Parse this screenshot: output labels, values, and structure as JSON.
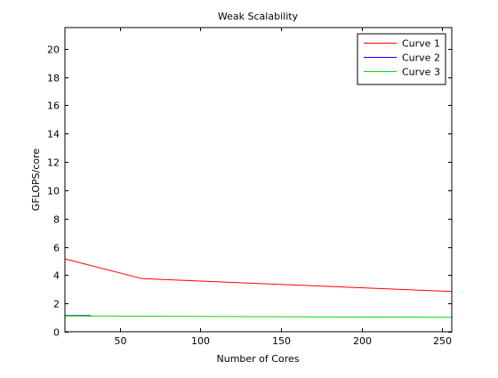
{
  "chart_data": {
    "type": "line",
    "title": "Weak Scalability",
    "xlabel": "Number of Cores",
    "ylabel": "GFLOPS/core",
    "xlim": [
      16,
      256
    ],
    "ylim": [
      0,
      21.5
    ],
    "xticks": [
      50,
      100,
      150,
      200,
      250
    ],
    "yticks": [
      0,
      2,
      4,
      6,
      8,
      10,
      12,
      14,
      16,
      18,
      20
    ],
    "grid": false,
    "legend_position": "top-right",
    "series": [
      {
        "name": "Curve 1",
        "color": "#ff0000",
        "x": [
          16,
          64,
          256
        ],
        "y": [
          5.15,
          3.75,
          2.85
        ]
      },
      {
        "name": "Curve 2",
        "color": "#0000ff",
        "x": [
          16,
          32
        ],
        "y": [
          1.15,
          1.15
        ]
      },
      {
        "name": "Curve 3",
        "color": "#00dd00",
        "x": [
          16,
          256
        ],
        "y": [
          1.12,
          1.02
        ]
      }
    ]
  }
}
